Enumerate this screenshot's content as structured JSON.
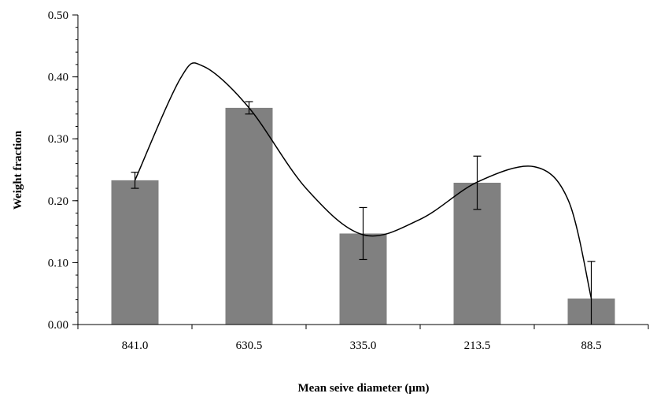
{
  "chart_data": {
    "type": "bar",
    "title": "",
    "xlabel": "Mean seive diameter (µm)",
    "ylabel": "Weight fraction",
    "categories": [
      "841.0",
      "630.5",
      "335.0",
      "213.5",
      "88.5"
    ],
    "values": [
      0.233,
      0.35,
      0.147,
      0.229,
      0.042
    ],
    "error_bars": [
      0.013,
      0.01,
      0.042,
      0.043,
      0.06
    ],
    "ylim": [
      0,
      0.5
    ],
    "yticks": [
      "0.00",
      "0.10",
      "0.20",
      "0.30",
      "0.40",
      "0.50"
    ],
    "ytick_values": [
      0,
      0.1,
      0.2,
      0.3,
      0.4,
      0.5
    ],
    "grid": false,
    "legend": "none",
    "bar_color": "#808080",
    "curve": {
      "type": "smooth-line",
      "color": "#000000",
      "points": [
        {
          "x": 0.0,
          "y": 0.233
        },
        {
          "x": 0.4,
          "y": 0.398
        },
        {
          "x": 0.6,
          "y": 0.417
        },
        {
          "x": 1.0,
          "y": 0.35
        },
        {
          "x": 1.5,
          "y": 0.22
        },
        {
          "x": 2.0,
          "y": 0.145
        },
        {
          "x": 2.5,
          "y": 0.17
        },
        {
          "x": 3.0,
          "y": 0.23
        },
        {
          "x": 3.5,
          "y": 0.255
        },
        {
          "x": 3.8,
          "y": 0.2
        },
        {
          "x": 4.0,
          "y": 0.042
        }
      ]
    }
  }
}
